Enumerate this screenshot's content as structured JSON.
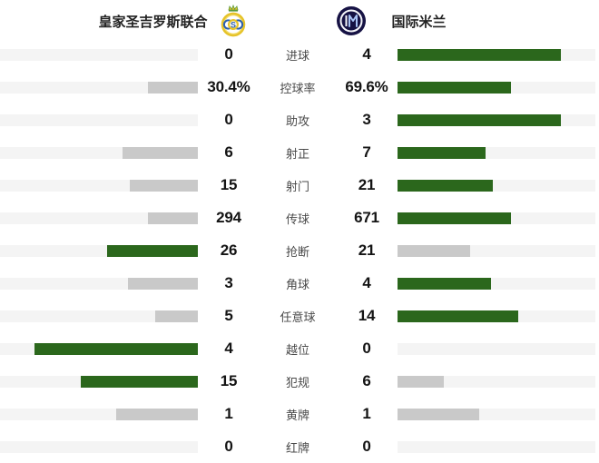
{
  "header": {
    "home": {
      "name": "皇家圣吉罗斯联合",
      "logo": "union-sg-crest"
    },
    "away": {
      "name": "国际米兰",
      "logo": "inter-milan-crest"
    }
  },
  "colors": {
    "win_bar": "#2b671c",
    "lose_bar": "#c9c9c9",
    "track": "#f4f4f4",
    "value_text": "#141414",
    "label_text": "#4a4a4a",
    "inter_navy": "#161244",
    "usg_gold": "#e6c32a",
    "usg_blue": "#2b5fb0"
  },
  "chart_data": {
    "type": "bar",
    "orientation": "horizontal-mirrored",
    "legend_position": "top",
    "grid": false,
    "teams": [
      "皇家圣吉罗斯联合",
      "国际米兰"
    ],
    "categories": [
      "进球",
      "控球率",
      "助攻",
      "射正",
      "射门",
      "传球",
      "抢断",
      "角球",
      "任意球",
      "越位",
      "犯规",
      "黄牌",
      "红牌"
    ],
    "series": [
      {
        "name": "皇家圣吉罗斯联合",
        "values": [
          0,
          30.4,
          0,
          6,
          15,
          294,
          26,
          3,
          5,
          4,
          15,
          1,
          0
        ]
      },
      {
        "name": "国际米兰",
        "values": [
          4,
          69.6,
          3,
          7,
          21,
          671,
          21,
          4,
          14,
          0,
          6,
          1,
          0
        ]
      }
    ],
    "stats": [
      {
        "label": "进球",
        "home": "0",
        "away": "4"
      },
      {
        "label": "控球率",
        "home": "30.4%",
        "away": "69.6%"
      },
      {
        "label": "助攻",
        "home": "0",
        "away": "3"
      },
      {
        "label": "射正",
        "home": "6",
        "away": "7"
      },
      {
        "label": "射门",
        "home": "15",
        "away": "21"
      },
      {
        "label": "传球",
        "home": "294",
        "away": "671"
      },
      {
        "label": "抢断",
        "home": "26",
        "away": "21"
      },
      {
        "label": "角球",
        "home": "3",
        "away": "4"
      },
      {
        "label": "任意球",
        "home": "5",
        "away": "14"
      },
      {
        "label": "越位",
        "home": "4",
        "away": "0"
      },
      {
        "label": "犯规",
        "home": "15",
        "away": "6"
      },
      {
        "label": "黄牌",
        "home": "1",
        "away": "1"
      },
      {
        "label": "红牌",
        "home": "0",
        "away": "0"
      }
    ]
  }
}
